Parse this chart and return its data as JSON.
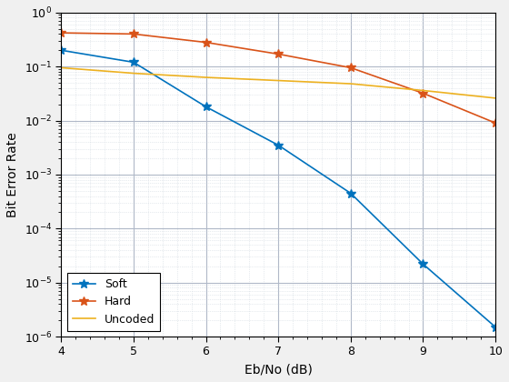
{
  "eb_no": [
    4,
    5,
    6,
    7,
    8,
    9,
    10
  ],
  "soft_ber": [
    0.2,
    0.12,
    0.018,
    0.0035,
    0.00045,
    2.2e-05,
    1.5e-06
  ],
  "hard_ber": [
    0.42,
    0.4,
    0.28,
    0.17,
    0.095,
    0.032,
    0.009
  ],
  "uncoded_ber": [
    0.095,
    0.075,
    0.063,
    0.055,
    0.048,
    0.036,
    0.026
  ],
  "soft_color": "#0072BD",
  "hard_color": "#D95319",
  "uncoded_color": "#EDB120",
  "xlabel": "Eb/No (dB)",
  "ylabel": "Bit Error Rate",
  "xlim": [
    4,
    10
  ],
  "ylim_min": 1e-06,
  "ylim_max": 1.0,
  "legend_labels": [
    "Soft",
    "Hard",
    "Uncoded"
  ],
  "major_grid_color": "#b0b8c8",
  "minor_grid_color": "#d0d8e0",
  "bg_color": "#ffffff",
  "fig_bg_color": "#f0f0f0",
  "spine_color": "#000000",
  "tick_label_size": 9,
  "axis_label_size": 10,
  "legend_fontsize": 9,
  "line_width": 1.2,
  "marker_size": 7
}
